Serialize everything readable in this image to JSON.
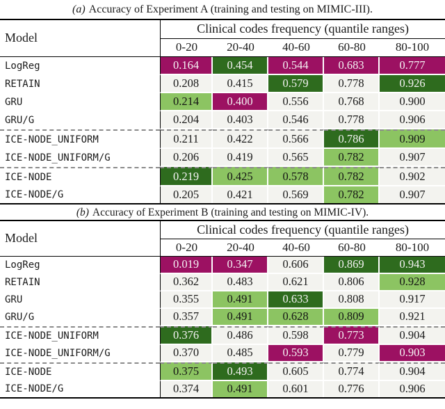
{
  "colors": {
    "magenta": "#9c1162",
    "dark_green": "#2e6b1e",
    "light_green": "#8cc462",
    "neutral_cell": "#f3f3ef",
    "text_on_dark": "#f5f3f4",
    "rule": "#000000",
    "dashed_separator": "#8a8a8a"
  },
  "tables": [
    {
      "caption_label": "(a)",
      "caption_text": "Accuracy of Experiment A (training and testing on MIMIC-III).",
      "model_header": "Model",
      "group_header": "Clinical codes frequency (quantile ranges)",
      "quantiles": [
        "0-20",
        "20-40",
        "40-60",
        "60-80",
        "80-100"
      ],
      "rows": [
        {
          "model": "LogReg",
          "dashed_top": false,
          "values": [
            "0.164",
            "0.454",
            "0.544",
            "0.683",
            "0.777"
          ],
          "colors": [
            "magenta",
            "dark-green",
            "magenta",
            "magenta",
            "magenta"
          ]
        },
        {
          "model": "RETAIN",
          "dashed_top": false,
          "values": [
            "0.208",
            "0.415",
            "0.579",
            "0.778",
            "0.926"
          ],
          "colors": [
            "none",
            "none",
            "dark-green",
            "none",
            "dark-green"
          ]
        },
        {
          "model": "GRU",
          "dashed_top": false,
          "values": [
            "0.214",
            "0.400",
            "0.556",
            "0.768",
            "0.900"
          ],
          "colors": [
            "light-green",
            "magenta",
            "none",
            "none",
            "none"
          ]
        },
        {
          "model": "GRU/G",
          "dashed_top": false,
          "values": [
            "0.204",
            "0.403",
            "0.546",
            "0.778",
            "0.906"
          ],
          "colors": [
            "none",
            "none",
            "none",
            "none",
            "none"
          ]
        },
        {
          "model": "ICE-NODE_UNIFORM",
          "dashed_top": true,
          "values": [
            "0.211",
            "0.422",
            "0.566",
            "0.786",
            "0.909"
          ],
          "colors": [
            "none",
            "none",
            "none",
            "dark-green",
            "light-green"
          ]
        },
        {
          "model": "ICE-NODE_UNIFORM/G",
          "dashed_top": false,
          "values": [
            "0.206",
            "0.419",
            "0.565",
            "0.782",
            "0.907"
          ],
          "colors": [
            "none",
            "none",
            "none",
            "light-green",
            "none"
          ]
        },
        {
          "model": "ICE-NODE",
          "dashed_top": true,
          "values": [
            "0.219",
            "0.425",
            "0.578",
            "0.782",
            "0.902"
          ],
          "colors": [
            "dark-green",
            "light-green",
            "light-green",
            "light-green",
            "none"
          ]
        },
        {
          "model": "ICE-NODE/G",
          "dashed_top": false,
          "values": [
            "0.205",
            "0.421",
            "0.569",
            "0.782",
            "0.907"
          ],
          "colors": [
            "none",
            "none",
            "none",
            "light-green",
            "none"
          ]
        }
      ]
    },
    {
      "caption_label": "(b)",
      "caption_text": "Accuracy of Experiment B (training and testing on MIMIC-IV).",
      "model_header": "Model",
      "group_header": "Clinical codes frequency (quantile ranges)",
      "quantiles": [
        "0-20",
        "20-40",
        "40-60",
        "60-80",
        "80-100"
      ],
      "rows": [
        {
          "model": "LogReg",
          "dashed_top": false,
          "values": [
            "0.019",
            "0.347",
            "0.606",
            "0.869",
            "0.943"
          ],
          "colors": [
            "magenta",
            "magenta",
            "none",
            "dark-green",
            "dark-green"
          ]
        },
        {
          "model": "RETAIN",
          "dashed_top": false,
          "values": [
            "0.362",
            "0.483",
            "0.621",
            "0.806",
            "0.928"
          ],
          "colors": [
            "none",
            "none",
            "none",
            "none",
            "light-green"
          ]
        },
        {
          "model": "GRU",
          "dashed_top": false,
          "values": [
            "0.355",
            "0.491",
            "0.633",
            "0.808",
            "0.917"
          ],
          "colors": [
            "none",
            "light-green",
            "dark-green",
            "none",
            "none"
          ]
        },
        {
          "model": "GRU/G",
          "dashed_top": false,
          "values": [
            "0.357",
            "0.491",
            "0.628",
            "0.809",
            "0.921"
          ],
          "colors": [
            "none",
            "light-green",
            "light-green",
            "light-green",
            "none"
          ]
        },
        {
          "model": "ICE-NODE_UNIFORM",
          "dashed_top": true,
          "values": [
            "0.376",
            "0.486",
            "0.598",
            "0.773",
            "0.904"
          ],
          "colors": [
            "dark-green",
            "none",
            "none",
            "magenta",
            "none"
          ]
        },
        {
          "model": "ICE-NODE_UNIFORM/G",
          "dashed_top": false,
          "values": [
            "0.370",
            "0.485",
            "0.593",
            "0.779",
            "0.903"
          ],
          "colors": [
            "none",
            "none",
            "magenta",
            "none",
            "magenta"
          ]
        },
        {
          "model": "ICE-NODE",
          "dashed_top": true,
          "values": [
            "0.375",
            "0.493",
            "0.605",
            "0.774",
            "0.904"
          ],
          "colors": [
            "light-green",
            "dark-green",
            "none",
            "none",
            "none"
          ]
        },
        {
          "model": "ICE-NODE/G",
          "dashed_top": false,
          "values": [
            "0.374",
            "0.491",
            "0.601",
            "0.776",
            "0.906"
          ],
          "colors": [
            "none",
            "light-green",
            "none",
            "none",
            "none"
          ]
        }
      ]
    }
  ]
}
